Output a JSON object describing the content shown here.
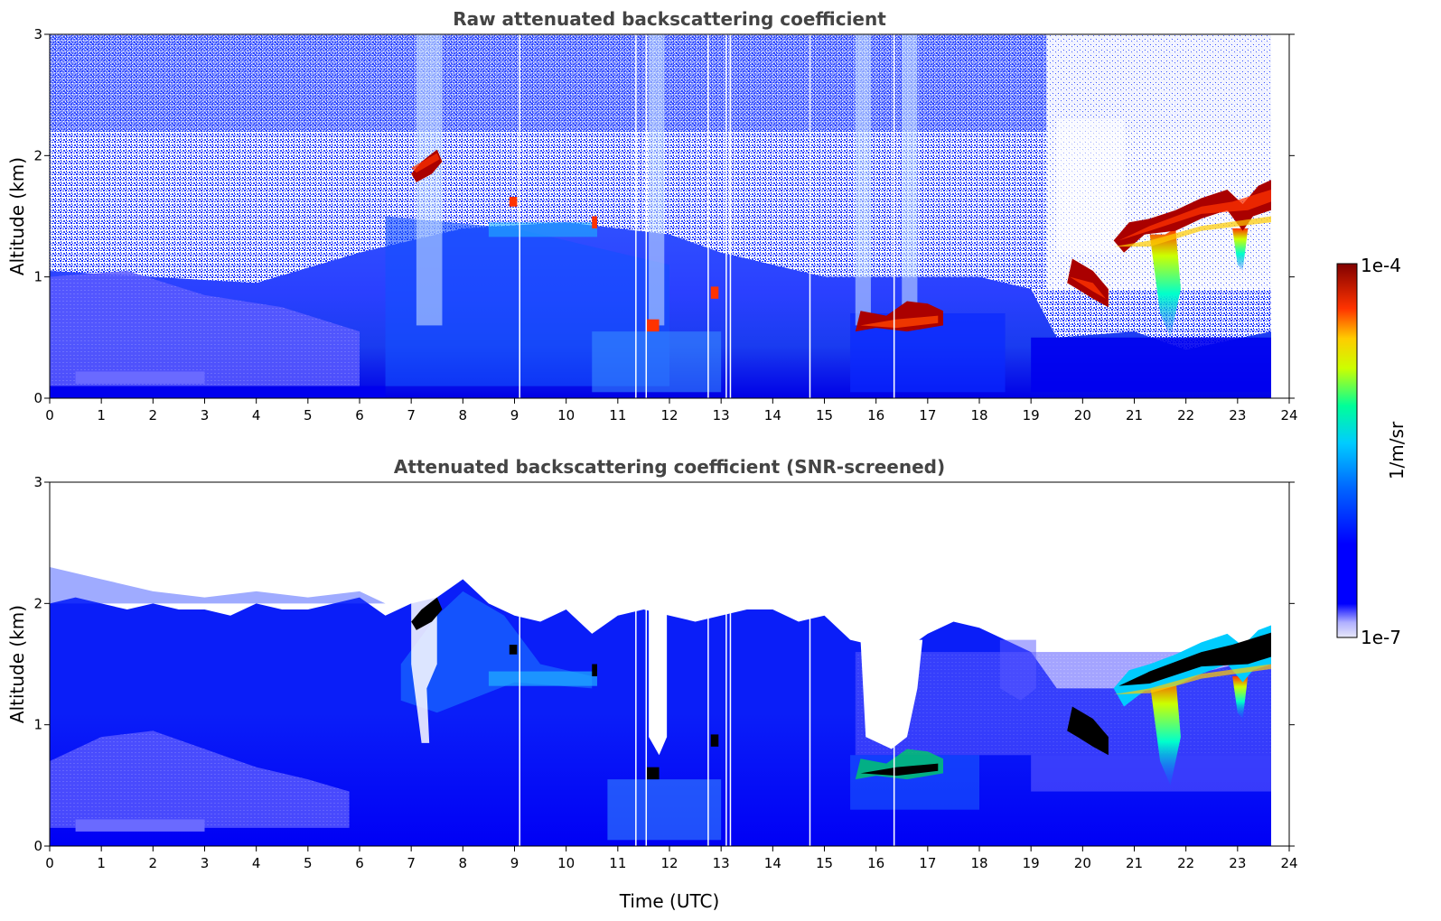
{
  "colors": {
    "background": "#ffffff",
    "title": "#444444",
    "colormap": [
      "#0000ff",
      "#0066ff",
      "#00ccff",
      "#00ff99",
      "#ccff00",
      "#ffcc00",
      "#ff3300",
      "#aa0000",
      "#800000"
    ]
  },
  "chart_data": [
    {
      "type": "heatmap",
      "title": "Raw attenuated backscattering coefficient",
      "xlabel": "",
      "ylabel": "Altitude (km)",
      "xlim": [
        0,
        24
      ],
      "ylim": [
        0,
        3
      ],
      "xticks": [
        "0",
        "1",
        "2",
        "3",
        "4",
        "5",
        "6",
        "7",
        "8",
        "9",
        "10",
        "11",
        "12",
        "13",
        "14",
        "15",
        "16",
        "17",
        "18",
        "19",
        "20",
        "21",
        "22",
        "23",
        "24"
      ],
      "yticks": [
        "0",
        "1",
        "2",
        "3"
      ],
      "data_end_time": 23.65,
      "features": [
        {
          "time": [
            7.0,
            7.6
          ],
          "altitude": [
            1.8,
            2.05
          ],
          "level": "high"
        },
        {
          "time": [
            19.7,
            20.5
          ],
          "altitude": [
            0.8,
            1.15
          ],
          "level": "high"
        },
        {
          "time": [
            20.5,
            23.65
          ],
          "altitude": [
            1.35,
            1.8
          ],
          "level": "high"
        },
        {
          "time": [
            15.6,
            17.3
          ],
          "altitude": [
            0.55,
            0.8
          ],
          "level": "high"
        },
        {
          "time": [
            11.5,
            11.8
          ],
          "altitude": [
            0.55,
            0.65
          ],
          "level": "high"
        }
      ]
    },
    {
      "type": "heatmap",
      "title": "Attenuated backscattering coefficient (SNR-screened)",
      "xlabel": "Time (UTC)",
      "ylabel": "Altitude (km)",
      "xlim": [
        0,
        24
      ],
      "ylim": [
        0,
        3
      ],
      "xticks": [
        "0",
        "1",
        "2",
        "3",
        "4",
        "5",
        "6",
        "7",
        "8",
        "9",
        "10",
        "11",
        "12",
        "13",
        "14",
        "15",
        "16",
        "17",
        "18",
        "19",
        "20",
        "21",
        "22",
        "23",
        "24"
      ],
      "yticks": [
        "0",
        "1",
        "2",
        "3"
      ],
      "data_end_time": 23.65
    }
  ],
  "colorbar": {
    "label": "1/m/sr",
    "max_label": "1e-4",
    "min_label": "1e-7"
  }
}
